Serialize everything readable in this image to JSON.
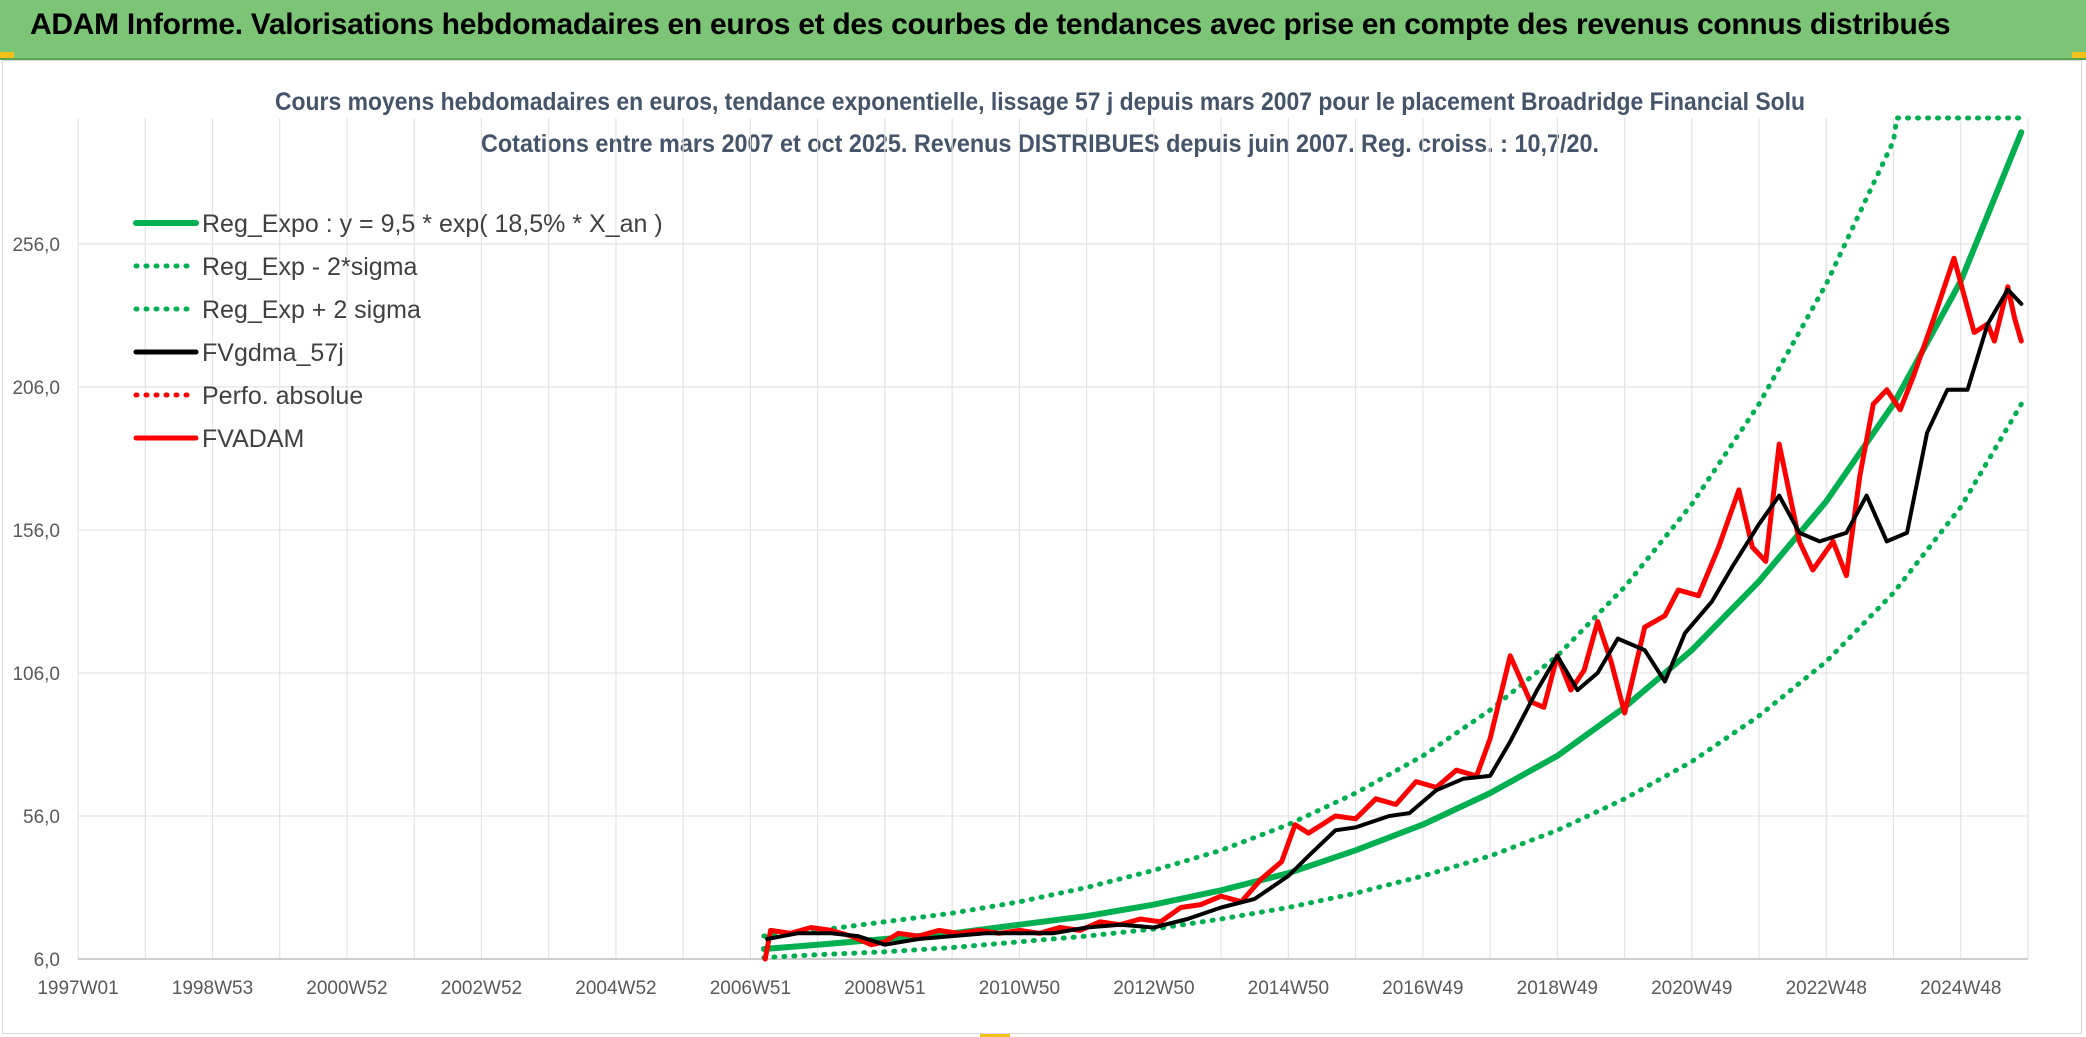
{
  "banner": {
    "title": "ADAM Informe. Valorisations hebdomadaires en euros et des courbes de tendances avec prise en compte des revenus connus distribués",
    "colors": {
      "background": "#7cc576",
      "corner": "#f2c21a"
    }
  },
  "chart_data": {
    "type": "line",
    "title": "Cours moyens hebdomadaires en euros, tendance exponentielle, lissage 57 j depuis mars 2007 pour le placement Broadridge Financial Solu",
    "subtitle": "Cotations entre mars 2007 et oct 2025. Revenus DISTRIBUES depuis juin 2007. Reg. croiss. : 10,7/20.",
    "xlabel": "",
    "ylabel": "",
    "x_range": [
      1997.0,
      2026.0
    ],
    "ylim": [
      6,
      300
    ],
    "y_ticks": [
      6,
      56,
      106,
      156,
      206,
      256
    ],
    "y_tick_labels": [
      "6,0",
      "56,0",
      "106,0",
      "156,0",
      "206,0",
      "256,0"
    ],
    "x_ticks": [
      {
        "label": "1997W01",
        "year": 1997.0
      },
      {
        "label": "1998W53",
        "year": 1999.0
      },
      {
        "label": "2000W52",
        "year": 2001.0
      },
      {
        "label": "2002W52",
        "year": 2003.0
      },
      {
        "label": "2004W52",
        "year": 2005.0
      },
      {
        "label": "2006W51",
        "year": 2007.0
      },
      {
        "label": "2008W51",
        "year": 2009.0
      },
      {
        "label": "2010W50",
        "year": 2011.0
      },
      {
        "label": "2012W50",
        "year": 2013.0
      },
      {
        "label": "2014W50",
        "year": 2015.0
      },
      {
        "label": "2016W49",
        "year": 2017.0
      },
      {
        "label": "2018W49",
        "year": 2019.0
      },
      {
        "label": "2020W49",
        "year": 2021.0
      },
      {
        "label": "2022W48",
        "year": 2023.0
      },
      {
        "label": "2024W48",
        "year": 2025.0
      }
    ],
    "grid": true,
    "legend_position": "top-left",
    "legend": [
      {
        "label": "Reg_Expo : y = 9,5 * exp( 18,5% *  X_an )",
        "color": "#00b050",
        "style": "solid"
      },
      {
        "label": "Reg_Exp - 2*sigma",
        "color": "#00b050",
        "style": "dotted"
      },
      {
        "label": "Reg_Exp + 2 sigma",
        "color": "#00b050",
        "style": "dotted"
      },
      {
        "label": "FVgdma_57j",
        "color": "#000000",
        "style": "solid"
      },
      {
        "label": "Perfo. absolue",
        "color": "#ff0000",
        "style": "dotted"
      },
      {
        "label": "FVADAM",
        "color": "#ff0000",
        "style": "solid"
      }
    ],
    "series": [
      {
        "name": "Reg_Expo : y = 9,5 * exp( 18,5% *  X_an )",
        "color": "#00b050",
        "style": "solid",
        "x": [
          2007.2,
          2008,
          2009,
          2010,
          2011,
          2012,
          2013,
          2014,
          2015,
          2016,
          2017,
          2018,
          2019,
          2020,
          2021,
          2022,
          2023,
          2024,
          2025,
          2025.9
        ],
        "y": [
          9.5,
          11,
          13,
          15,
          18,
          21,
          25,
          30,
          36,
          44,
          53,
          64,
          77,
          94,
          114,
          138,
          166,
          200,
          243,
          295
        ]
      },
      {
        "name": "Reg_Exp - 2*sigma",
        "color": "#00b050",
        "style": "dotted",
        "x": [
          2007.2,
          2008,
          2009,
          2010,
          2011,
          2012,
          2013,
          2014,
          2015,
          2016,
          2017,
          2018,
          2019,
          2020,
          2021,
          2022,
          2023,
          2024,
          2025,
          2025.9
        ],
        "y": [
          6.5,
          7.5,
          8.5,
          10,
          12,
          14,
          16.5,
          20,
          24,
          29,
          35,
          42,
          51,
          62,
          75,
          91,
          110,
          134,
          164,
          200
        ]
      },
      {
        "name": "Reg_Exp + 2 sigma",
        "color": "#00b050",
        "style": "dotted",
        "x": [
          2007.2,
          2008,
          2009,
          2010,
          2011,
          2012,
          2013,
          2014,
          2015,
          2016,
          2017,
          2018,
          2019,
          2020,
          2021,
          2022,
          2023,
          2024,
          2024.05,
          2025.9
        ],
        "y": [
          14,
          16,
          19,
          22,
          26,
          31,
          37,
          44,
          53,
          64,
          77,
          93,
          112,
          136,
          165,
          200,
          242,
          292,
          300,
          300
        ]
      },
      {
        "name": "FVgdma_57j",
        "color": "#000000",
        "style": "solid",
        "x": [
          2007.25,
          2007.7,
          2008.2,
          2008.6,
          2009.0,
          2009.5,
          2010.0,
          2010.5,
          2011.0,
          2011.5,
          2012.0,
          2012.5,
          2013.0,
          2013.5,
          2014.0,
          2014.5,
          2015.0,
          2015.3,
          2015.7,
          2016.0,
          2016.5,
          2016.8,
          2017.2,
          2017.6,
          2018.0,
          2018.3,
          2018.7,
          2019.0,
          2019.3,
          2019.6,
          2019.9,
          2020.3,
          2020.6,
          2020.9,
          2021.3,
          2021.6,
          2022.0,
          2022.3,
          2022.6,
          2022.9,
          2023.3,
          2023.6,
          2023.9,
          2024.2,
          2024.5,
          2024.8,
          2025.1,
          2025.4,
          2025.7,
          2025.9
        ],
        "y": [
          13,
          15,
          15,
          14,
          11,
          13,
          14,
          15,
          15,
          15,
          17,
          18,
          17,
          20,
          24,
          27,
          35,
          42,
          51,
          52,
          56,
          57,
          65,
          69,
          70,
          82,
          100,
          112,
          100,
          106,
          118,
          114,
          103,
          120,
          131,
          143,
          158,
          168,
          155,
          152,
          155,
          168,
          152,
          155,
          190,
          205,
          205,
          228,
          240,
          235
        ]
      },
      {
        "name": "FVADAM",
        "color": "#ff0000",
        "style": "solid",
        "x": [
          2007.22,
          2007.3,
          2007.6,
          2007.9,
          2008.2,
          2008.5,
          2008.8,
          2009.0,
          2009.2,
          2009.5,
          2009.8,
          2010.1,
          2010.4,
          2010.7,
          2011.0,
          2011.3,
          2011.6,
          2011.9,
          2012.2,
          2012.5,
          2012.8,
          2013.1,
          2013.4,
          2013.7,
          2014.0,
          2014.3,
          2014.6,
          2014.9,
          2015.1,
          2015.3,
          2015.5,
          2015.7,
          2016.0,
          2016.3,
          2016.6,
          2016.9,
          2017.2,
          2017.5,
          2017.8,
          2018.0,
          2018.3,
          2018.6,
          2018.8,
          2019.0,
          2019.2,
          2019.4,
          2019.6,
          2019.8,
          2020.0,
          2020.3,
          2020.6,
          2020.8,
          2021.1,
          2021.4,
          2021.7,
          2021.9,
          2022.1,
          2022.3,
          2022.6,
          2022.8,
          2023.1,
          2023.3,
          2023.5,
          2023.7,
          2023.9,
          2024.1,
          2024.3,
          2024.6,
          2024.9,
          2025.2,
          2025.4,
          2025.5,
          2025.7,
          2025.8,
          2025.9
        ],
        "y": [
          6,
          16,
          15,
          17,
          16,
          14,
          11,
          12,
          15,
          14,
          16,
          15,
          16,
          15,
          16,
          15,
          17,
          16,
          19,
          18,
          20,
          19,
          24,
          25,
          28,
          26,
          34,
          40,
          53,
          50,
          53,
          56,
          55,
          62,
          60,
          68,
          66,
          72,
          70,
          83,
          112,
          96,
          94,
          112,
          100,
          107,
          124,
          110,
          92,
          122,
          126,
          135,
          133,
          150,
          170,
          150,
          145,
          186,
          152,
          142,
          152,
          140,
          175,
          200,
          205,
          198,
          210,
          230,
          251,
          225,
          228,
          222,
          241,
          230,
          222
        ]
      }
    ]
  }
}
